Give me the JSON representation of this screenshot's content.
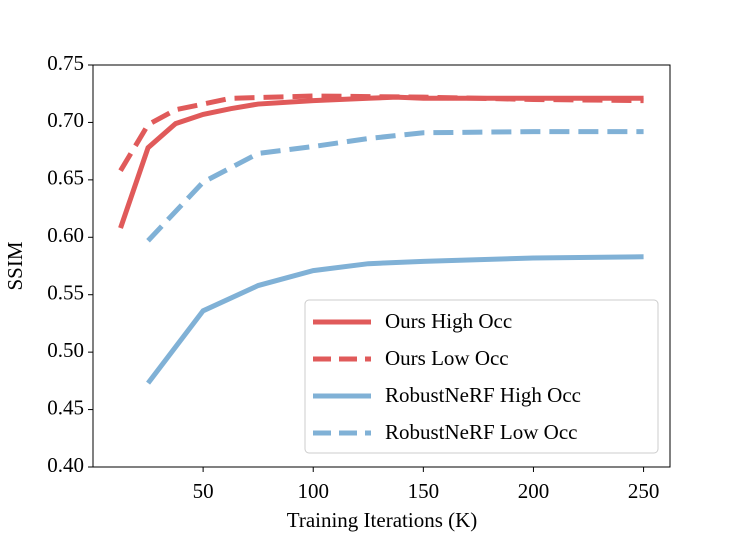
{
  "chart_data": {
    "type": "line",
    "xlabel": "Training Iterations (K)",
    "ylabel": "SSIM",
    "xlim": [
      0,
      262
    ],
    "xticks": [
      50,
      100,
      150,
      200,
      250
    ],
    "ylim": [
      0.4,
      0.75
    ],
    "yticks": [
      {
        "value": 0.4,
        "label": "0.40"
      },
      0.45,
      {
        "value": 0.5,
        "label": "0.50"
      },
      0.55,
      {
        "value": 0.6,
        "label": "0.60"
      },
      0.65,
      {
        "value": 0.7,
        "label": "0.70"
      },
      0.75
    ],
    "legend": "lower right",
    "series": [
      {
        "name": "Ours High Occ",
        "color": "#e05a5a",
        "linestyle": "solid",
        "x": [
          12.5,
          25,
          37.5,
          50,
          62.5,
          75,
          100,
          125,
          137.5,
          150,
          200,
          250
        ],
        "values": [
          0.608,
          0.678,
          0.699,
          0.707,
          0.712,
          0.716,
          0.719,
          0.721,
          0.722,
          0.721,
          0.721,
          0.721
        ]
      },
      {
        "name": "Ours Low Occ",
        "color": "#e05a5a",
        "linestyle": "dashed",
        "x": [
          12.5,
          25,
          37.5,
          50,
          62.5,
          100,
          150,
          200,
          250
        ],
        "values": [
          0.658,
          0.698,
          0.711,
          0.716,
          0.721,
          0.723,
          0.722,
          0.72,
          0.719
        ]
      },
      {
        "name": "RobustNeRF High Occ",
        "color": "#80b1d6",
        "linestyle": "solid",
        "x": [
          25,
          50,
          75,
          100,
          125,
          150,
          200,
          250
        ],
        "values": [
          0.473,
          0.536,
          0.558,
          0.571,
          0.577,
          0.579,
          0.582,
          0.583
        ]
      },
      {
        "name": "RobustNeRF Low Occ",
        "color": "#80b1d6",
        "linestyle": "dashed",
        "x": [
          25,
          50,
          75,
          100,
          125,
          150,
          200,
          250
        ],
        "values": [
          0.597,
          0.648,
          0.673,
          0.679,
          0.686,
          0.691,
          0.692,
          0.692
        ]
      }
    ]
  }
}
